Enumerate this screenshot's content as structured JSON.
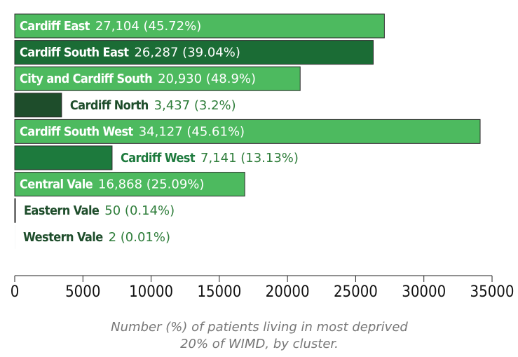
{
  "chart_data": {
    "type": "hbar",
    "categories": [
      "Cardiff East",
      "Cardiff South East",
      "City and Cardiff South",
      "Cardiff North",
      "Cardiff South West",
      "Cardiff West",
      "Central Vale",
      "Eastern Vale",
      "Western Vale"
    ],
    "values": [
      27104,
      26287,
      20930,
      3437,
      34127,
      7141,
      16868,
      50,
      2
    ],
    "value_labels": [
      "27,104 (45.72%)",
      "26,287 (39.04%)",
      "20,930 (48.9%)",
      "3,437 (3.2%)",
      "34,127 (45.61%)",
      "7,141 (13.13%)",
      "16,868 (25.09%)",
      "50 (0.14%)",
      "2 (0.01%)"
    ],
    "colors": [
      "#4dba5f",
      "#1b6c35",
      "#4dba5f",
      "#1e4d2b",
      "#4dba5f",
      "#1d7a3d",
      "#4dba5f",
      "#1e4d2b",
      "#1e4d2b"
    ],
    "xlim": [
      0,
      35000
    ],
    "xticks": [
      0,
      5000,
      10000,
      15000,
      20000,
      25000,
      30000,
      35000
    ],
    "caption": "Number (%) of patients living in most deprived 20% of WIMD, by cluster."
  }
}
